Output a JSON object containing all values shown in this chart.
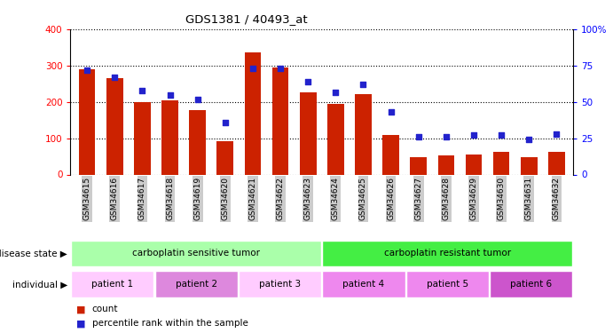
{
  "title": "GDS1381 / 40493_at",
  "samples": [
    "GSM34615",
    "GSM34616",
    "GSM34617",
    "GSM34618",
    "GSM34619",
    "GSM34620",
    "GSM34621",
    "GSM34622",
    "GSM34623",
    "GSM34624",
    "GSM34625",
    "GSM34626",
    "GSM34627",
    "GSM34628",
    "GSM34629",
    "GSM34630",
    "GSM34631",
    "GSM34632"
  ],
  "counts": [
    290,
    265,
    200,
    205,
    178,
    92,
    338,
    295,
    228,
    194,
    222,
    110,
    48,
    52,
    55,
    62,
    48,
    62
  ],
  "percentiles": [
    72,
    67,
    58,
    55,
    52,
    36,
    73,
    73,
    64,
    57,
    62,
    43,
    26,
    26,
    27,
    27,
    24,
    28
  ],
  "ylim_left": [
    0,
    400
  ],
  "ylim_right": [
    0,
    100
  ],
  "yticks_left": [
    0,
    100,
    200,
    300,
    400
  ],
  "yticks_right": [
    0,
    25,
    50,
    75,
    100
  ],
  "bar_color": "#cc2200",
  "dot_color": "#2222cc",
  "disease_state_groups": [
    {
      "label": "carboplatin sensitive tumor",
      "start": 0,
      "end": 9,
      "color": "#aaffaa"
    },
    {
      "label": "carboplatin resistant tumor",
      "start": 9,
      "end": 18,
      "color": "#44ee44"
    }
  ],
  "individual_groups": [
    {
      "label": "patient 1",
      "start": 0,
      "end": 3,
      "color": "#ffccff"
    },
    {
      "label": "patient 2",
      "start": 3,
      "end": 6,
      "color": "#dd88dd"
    },
    {
      "label": "patient 3",
      "start": 6,
      "end": 9,
      "color": "#ffccff"
    },
    {
      "label": "patient 4",
      "start": 9,
      "end": 12,
      "color": "#ee88ee"
    },
    {
      "label": "patient 5",
      "start": 12,
      "end": 15,
      "color": "#ee88ee"
    },
    {
      "label": "patient 6",
      "start": 15,
      "end": 18,
      "color": "#cc55cc"
    }
  ],
  "ind_colors": [
    "#ffccff",
    "#dd88dd",
    "#ffccff",
    "#ee88ee",
    "#ee88ee",
    "#cc55cc"
  ],
  "legend_count_label": "count",
  "legend_percentile_label": "percentile rank within the sample",
  "disease_state_label": "disease state",
  "individual_label": "individual",
  "tick_bg_color": "#cccccc"
}
